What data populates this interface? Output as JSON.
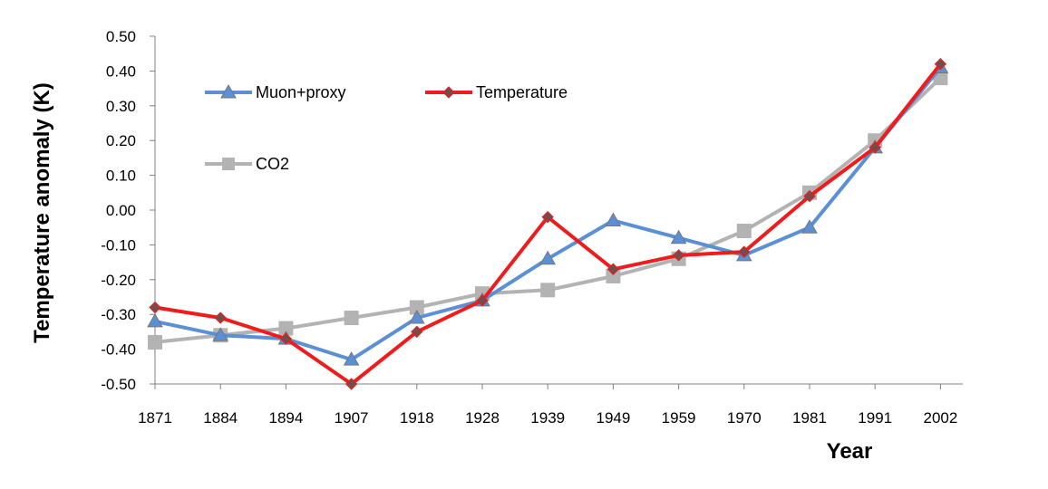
{
  "chart_data": {
    "type": "line",
    "title": "",
    "xlabel": "Year",
    "ylabel": "Temperature anomaly (K)",
    "ylim": [
      -0.5,
      0.5
    ],
    "yticks": [
      "0.50",
      "0.40",
      "0.30",
      "0.20",
      "0.10",
      "0.00",
      "-0.10",
      "-0.20",
      "-0.30",
      "-0.40",
      "-0.50"
    ],
    "categories": [
      "1871",
      "1884",
      "1894",
      "1907",
      "1918",
      "1928",
      "1939",
      "1949",
      "1959",
      "1970",
      "1981",
      "1991",
      "2002"
    ],
    "grid": false,
    "series": [
      {
        "name": "Muon+proxy",
        "color": "#5b8fd6",
        "marker": "triangle",
        "values": [
          -0.32,
          -0.36,
          -0.37,
          -0.43,
          -0.31,
          -0.26,
          -0.14,
          -0.03,
          -0.08,
          -0.13,
          -0.05,
          0.18,
          0.41
        ]
      },
      {
        "name": "Temperature",
        "color": "#ee1c1c",
        "marker": "diamond",
        "values": [
          -0.28,
          -0.31,
          -0.37,
          -0.5,
          -0.35,
          -0.26,
          -0.02,
          -0.17,
          -0.13,
          -0.12,
          0.04,
          0.18,
          0.42
        ]
      },
      {
        "name": "CO2",
        "color": "#b3b3b3",
        "marker": "square",
        "values": [
          -0.38,
          -0.36,
          -0.34,
          -0.31,
          -0.28,
          -0.24,
          -0.23,
          -0.19,
          -0.14,
          -0.06,
          0.05,
          0.2,
          0.38
        ]
      }
    ]
  }
}
